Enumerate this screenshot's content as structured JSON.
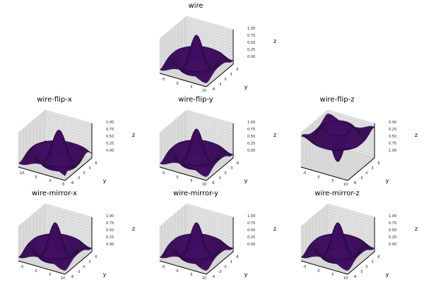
{
  "colors": {
    "surface": "#4a1070",
    "wire": "#1e0633",
    "pane": "#e9e9e9",
    "pane_grid": "#b8b8b8"
  },
  "chart_data": [
    {
      "type": "wireframe",
      "title": "wire",
      "xlabel": "",
      "ylabel": "y",
      "zlabel": "z",
      "xticks": [
        "-5",
        "0",
        "5",
        "10"
      ],
      "yticks": [
        "-6",
        "-3",
        "0",
        "3",
        "6"
      ],
      "zticks": [
        "0.00",
        "0.25",
        "0.50",
        "0.75",
        "1.00"
      ],
      "flip_x": false,
      "flip_y": false,
      "flip_z": false,
      "grid": true
    },
    {
      "type": "wireframe",
      "title": "wire-flip-x",
      "xlabel": "",
      "ylabel": "y",
      "zlabel": "z",
      "xticks": [
        "10",
        "5",
        "0",
        "-5"
      ],
      "yticks": [
        "-6",
        "-3",
        "0",
        "3",
        "6"
      ],
      "zticks": [
        "0.00",
        "0.25",
        "0.50",
        "0.75",
        "1.00"
      ],
      "flip_x": true,
      "flip_y": false,
      "flip_z": false,
      "grid": true
    },
    {
      "type": "wireframe",
      "title": "wire-flip-y",
      "xlabel": "",
      "ylabel": "y",
      "zlabel": "z",
      "xticks": [
        "-5",
        "0",
        "5",
        "10"
      ],
      "yticks": [
        "6",
        "3",
        "0",
        "-3",
        "-6"
      ],
      "flip_x": false,
      "flip_y": true,
      "flip_z": false,
      "zticks": [
        "0.00",
        "0.25",
        "0.50",
        "0.75",
        "1.00"
      ],
      "grid": true
    },
    {
      "type": "wireframe",
      "title": "wire-flip-z",
      "xlabel": "",
      "ylabel": "y",
      "zlabel": "z",
      "xticks": [
        "-5",
        "0",
        "5",
        "10"
      ],
      "yticks": [
        "-6",
        "-3",
        "0",
        "3",
        "6"
      ],
      "zticks": [
        "1.00",
        "0.75",
        "0.50",
        "0.25",
        "0.00"
      ],
      "flip_x": false,
      "flip_y": false,
      "flip_z": true,
      "grid": true
    },
    {
      "type": "wireframe",
      "title": "wire-mirror-x",
      "xlabel": "",
      "ylabel": "y",
      "zlabel": "z",
      "xticks": [
        "-5",
        "0",
        "5",
        "10"
      ],
      "yticks": [
        "-6",
        "-3",
        "0",
        "3",
        "6"
      ],
      "zticks": [
        "0.00",
        "0.25",
        "0.50",
        "0.75",
        "1.00"
      ],
      "flip_x": false,
      "flip_y": false,
      "flip_z": false,
      "grid": true
    },
    {
      "type": "wireframe",
      "title": "wire-mirror-y",
      "xlabel": "",
      "ylabel": "y",
      "zlabel": "z",
      "xticks": [
        "-5",
        "0",
        "5",
        "10"
      ],
      "yticks": [
        "-6",
        "-3",
        "0",
        "3",
        "6"
      ],
      "zticks": [
        "0.00",
        "0.25",
        "0.50",
        "0.75",
        "1.00"
      ],
      "flip_x": false,
      "flip_y": false,
      "flip_z": false,
      "grid": true
    },
    {
      "type": "wireframe",
      "title": "wire-mirror-z",
      "xlabel": "",
      "ylabel": "y",
      "zlabel": "z",
      "xticks": [
        "-5",
        "0",
        "5",
        "10"
      ],
      "yticks": [
        "-6",
        "-3",
        "0",
        "3",
        "6"
      ],
      "zticks": [
        "0.00",
        "0.25",
        "0.50",
        "0.75",
        "1.00"
      ],
      "flip_x": false,
      "flip_y": false,
      "flip_z": false,
      "grid": true
    }
  ]
}
